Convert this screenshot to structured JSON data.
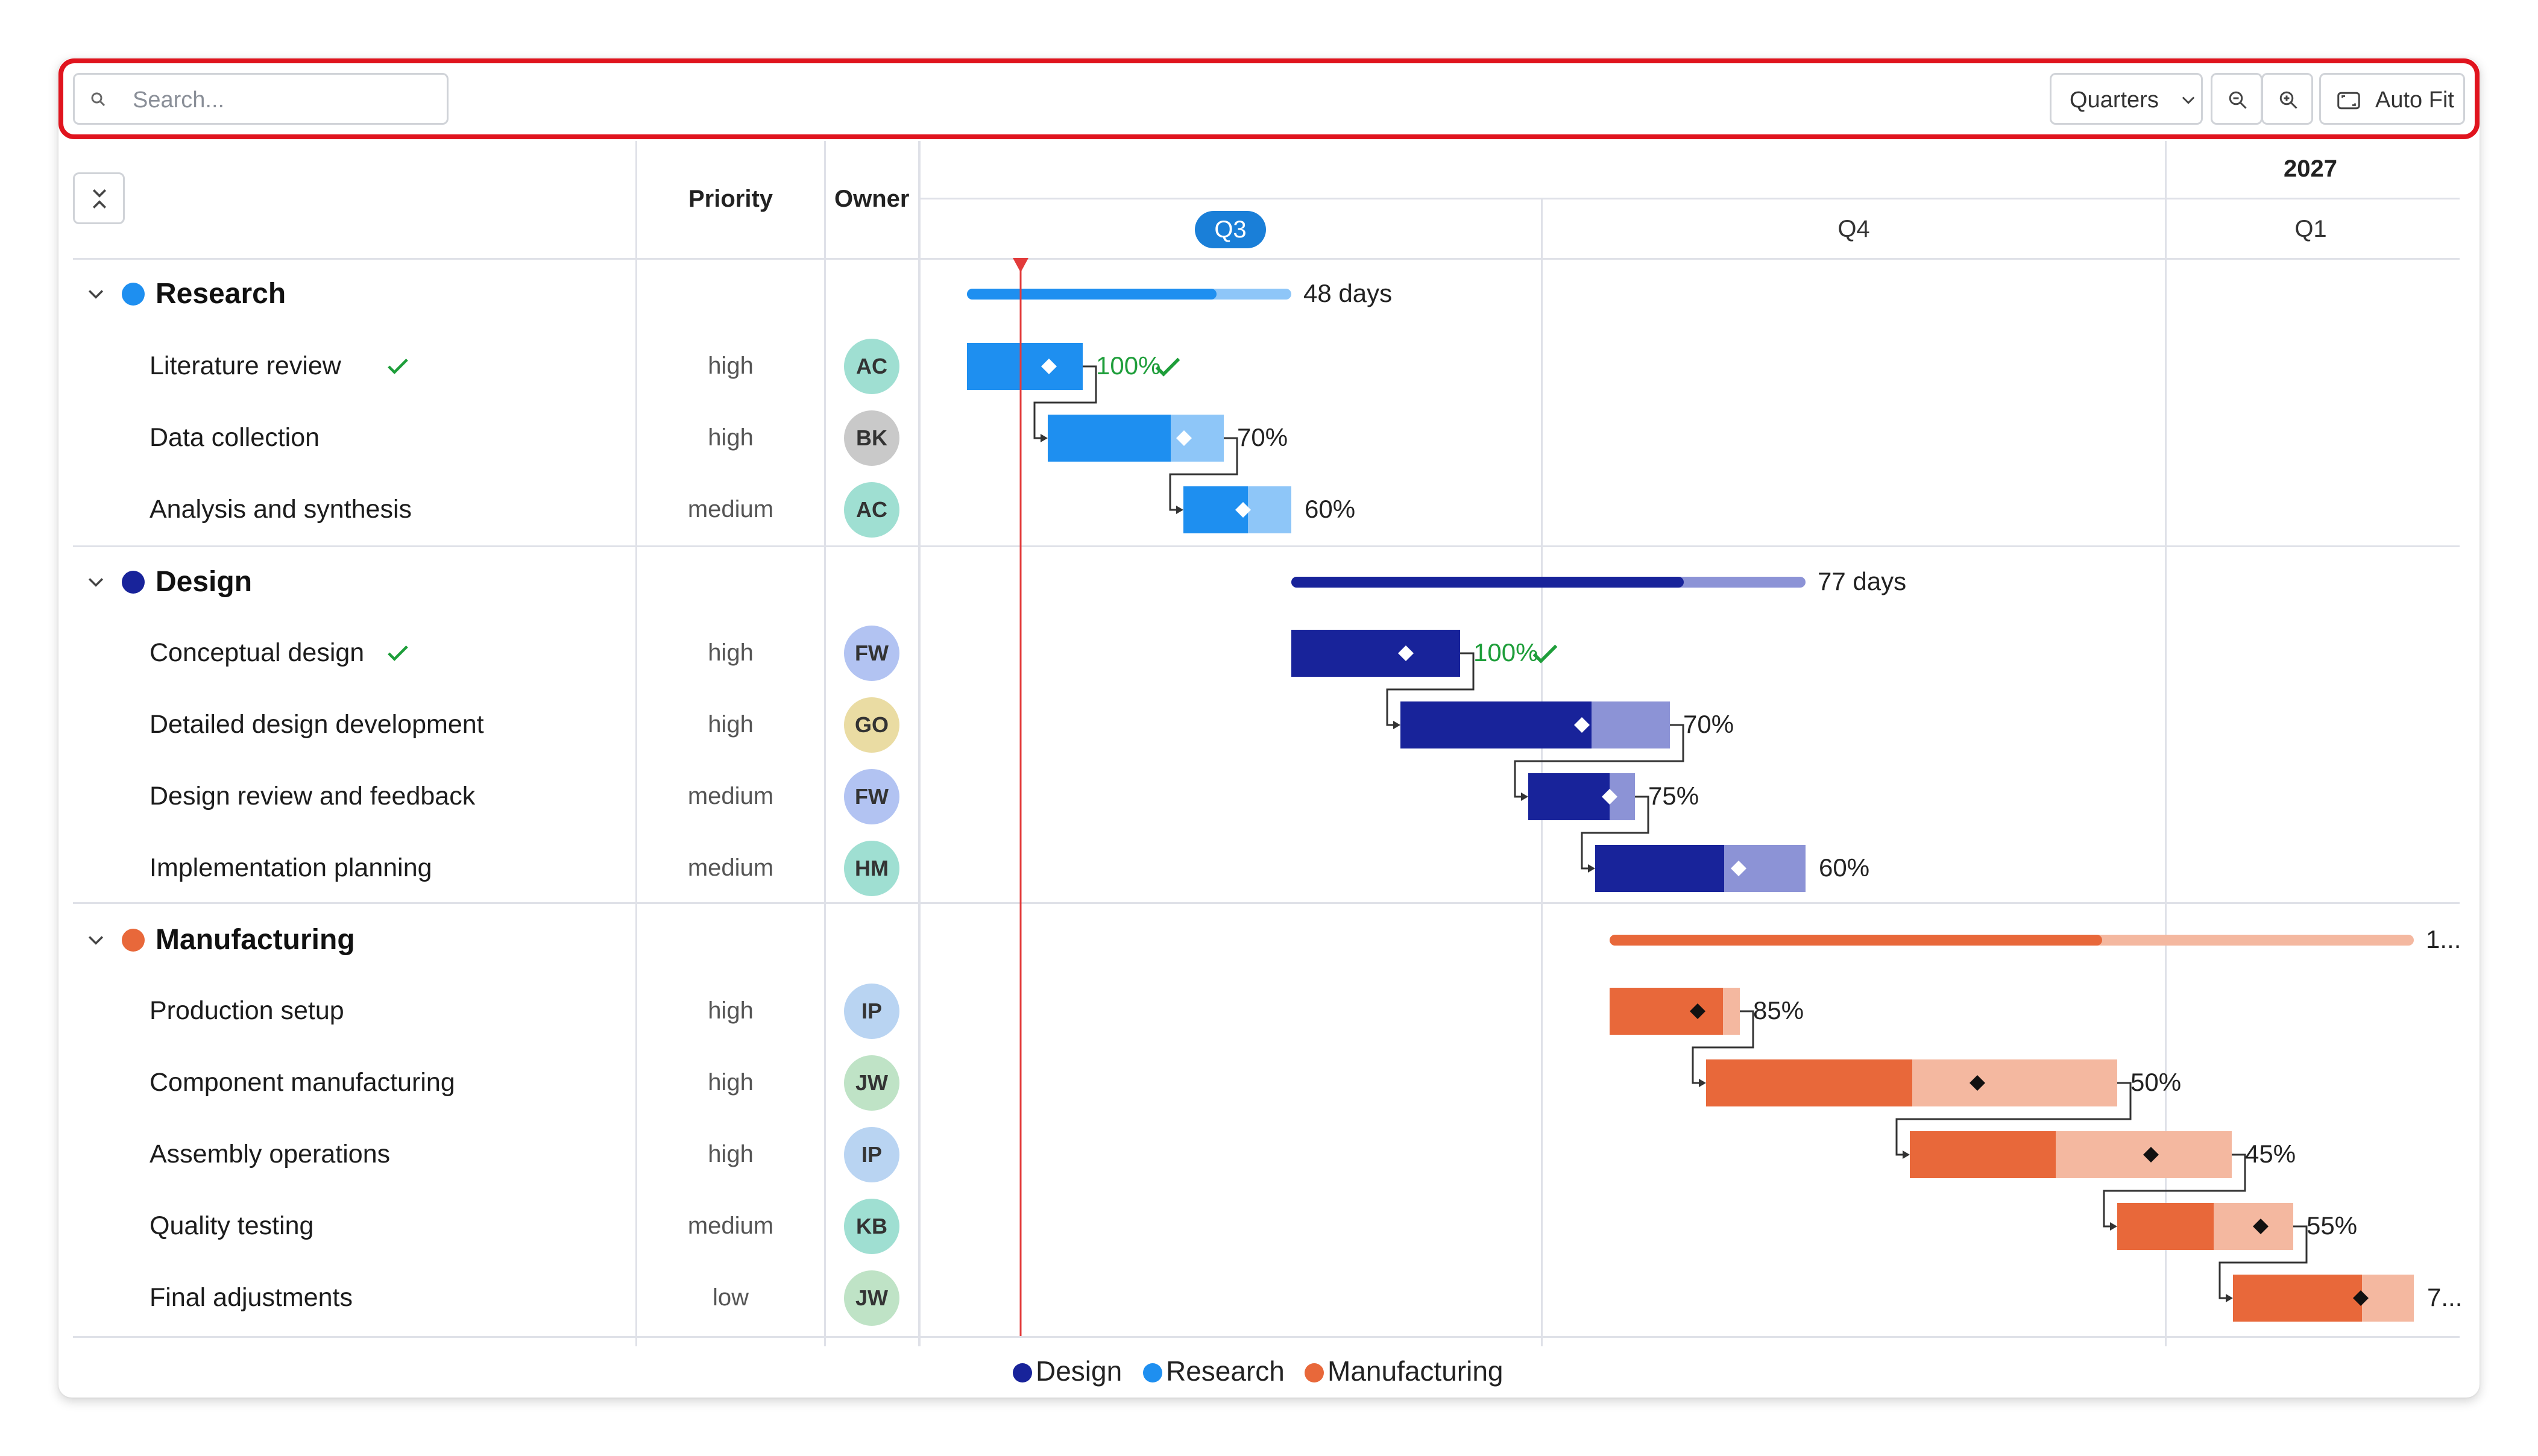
{
  "toolbar": {
    "search_placeholder": "Search...",
    "zoom_select": "Quarters",
    "auto_fit_label": "Auto Fit"
  },
  "columns": {
    "priority": "Priority",
    "owner": "Owner"
  },
  "timeline": {
    "year": "2027",
    "quarters": [
      "Q3",
      "Q4",
      "Q1"
    ],
    "current_quarter": "Q3"
  },
  "groups": [
    {
      "name": "Research",
      "color": "#1e8ff0",
      "summary": "48 days",
      "tasks": [
        {
          "name": "Literature review",
          "done": true,
          "priority": "high",
          "owner": "AC",
          "progress": "100%"
        },
        {
          "name": "Data collection",
          "done": false,
          "priority": "high",
          "owner": "BK",
          "progress": "70%"
        },
        {
          "name": "Analysis and synthesis",
          "done": false,
          "priority": "medium",
          "owner": "AC",
          "progress": "60%"
        }
      ]
    },
    {
      "name": "Design",
      "color": "#18239a",
      "summary": "77 days",
      "tasks": [
        {
          "name": "Conceptual design",
          "done": true,
          "priority": "high",
          "owner": "FW",
          "progress": "100%"
        },
        {
          "name": "Detailed design development",
          "done": false,
          "priority": "high",
          "owner": "GO",
          "progress": "70%"
        },
        {
          "name": "Design review and feedback",
          "done": false,
          "priority": "medium",
          "owner": "FW",
          "progress": "75%"
        },
        {
          "name": "Implementation planning",
          "done": false,
          "priority": "medium",
          "owner": "HM",
          "progress": "60%"
        }
      ]
    },
    {
      "name": "Manufacturing",
      "color": "#e8683a",
      "summary": "1...",
      "tasks": [
        {
          "name": "Production setup",
          "done": false,
          "priority": "high",
          "owner": "IP",
          "progress": "85%"
        },
        {
          "name": "Component manufacturing",
          "done": false,
          "priority": "high",
          "owner": "JW",
          "progress": "50%"
        },
        {
          "name": "Assembly operations",
          "done": false,
          "priority": "high",
          "owner": "IP",
          "progress": "45%"
        },
        {
          "name": "Quality testing",
          "done": false,
          "priority": "medium",
          "owner": "KB",
          "progress": "55%"
        },
        {
          "name": "Final adjustments",
          "done": false,
          "priority": "low",
          "owner": "JW",
          "progress": "7..."
        }
      ]
    }
  ],
  "legend": [
    "Design",
    "Research",
    "Manufacturing"
  ],
  "colors": {
    "research": "#1e8ff0",
    "research_light": "#8ec6f8",
    "design": "#18239a",
    "design_light": "#8c93d6",
    "manufacturing": "#e8683a",
    "manufacturing_light": "#f4b8a0",
    "today_line": "#e23b3b",
    "done_green": "#1e9e3a"
  }
}
